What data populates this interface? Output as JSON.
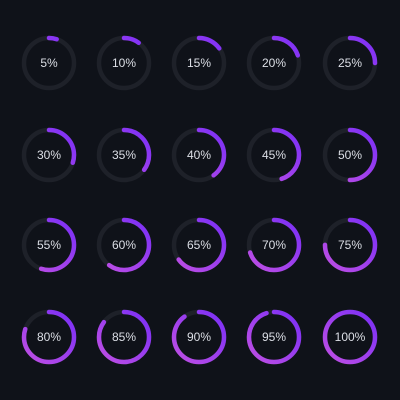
{
  "colors": {
    "background": "#0f1219",
    "track": "#1e2129",
    "arc_start": "#c04fe3",
    "arc_end": "#7a2ff7",
    "label": "#dcdfe6"
  },
  "progress_rings": [
    {
      "label": "5%",
      "value": 0.05
    },
    {
      "label": "10%",
      "value": 0.1
    },
    {
      "label": "15%",
      "value": 0.15
    },
    {
      "label": "20%",
      "value": 0.2
    },
    {
      "label": "25%",
      "value": 0.25
    },
    {
      "label": "30%",
      "value": 0.3
    },
    {
      "label": "35%",
      "value": 0.35
    },
    {
      "label": "40%",
      "value": 0.4
    },
    {
      "label": "45%",
      "value": 0.45
    },
    {
      "label": "50%",
      "value": 0.5
    },
    {
      "label": "55%",
      "value": 0.55
    },
    {
      "label": "60%",
      "value": 0.6
    },
    {
      "label": "65%",
      "value": 0.65
    },
    {
      "label": "70%",
      "value": 0.7
    },
    {
      "label": "75%",
      "value": 0.75
    },
    {
      "label": "80%",
      "value": 0.8
    },
    {
      "label": "85%",
      "value": 0.85
    },
    {
      "label": "90%",
      "value": 0.9
    },
    {
      "label": "95%",
      "value": 0.95
    },
    {
      "label": "100%",
      "value": 1.0
    }
  ]
}
